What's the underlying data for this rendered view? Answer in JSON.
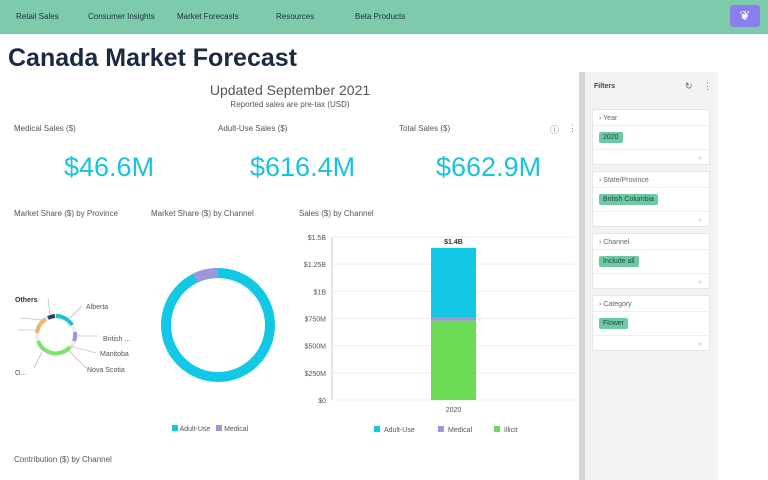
{
  "nav": {
    "items": [
      "Retail Sales",
      "Consumer Insights",
      "Market Forecasts",
      "Resources",
      "Beta Products"
    ],
    "logo_icon": "sprout-icon"
  },
  "page_title": "Canada Market Forecast",
  "header": {
    "updated": "Updated September 2021",
    "note": "Reported sales are pre-tax (USD)"
  },
  "kpis": [
    {
      "label": "Medical Sales ($)",
      "value": "$46.6M"
    },
    {
      "label": "Adult-Use Sales ($)",
      "value": "$616.4M"
    },
    {
      "label": "Total Sales ($)",
      "value": "$662.9M"
    }
  ],
  "province_chart": {
    "title": "Market Share ($) by Province",
    "labels": [
      "Others",
      "Alberta",
      "British ...",
      "Manitoba",
      "Nova Scotia",
      "O..."
    ]
  },
  "channel_chart": {
    "title": "Market Share ($) by Channel",
    "legend": [
      "Adult-Use",
      "Medical"
    ]
  },
  "sales_chart_title": "Sales ($) by Channel",
  "contribution_title": "Contribution ($) by Channel",
  "chart_data": {
    "type": "bar",
    "stacked": true,
    "categories": [
      "2020"
    ],
    "series": [
      {
        "name": "Illicit",
        "values": [
          730
        ],
        "color": "#6ddc55"
      },
      {
        "name": "Medical",
        "values": [
          30
        ],
        "color": "#9b97d8"
      },
      {
        "name": "Adult-Use",
        "values": [
          640
        ],
        "color": "#12c8e4"
      }
    ],
    "total_label": "$1.4B",
    "yticks": [
      "$0",
      "$250M",
      "$500M",
      "$750M",
      "$1B",
      "$1.25B",
      "$1.5B"
    ],
    "ylim": [
      0,
      1500
    ],
    "ylabel_unit": "millions USD",
    "legend": [
      "Adult-Use",
      "Medical",
      "Illicit"
    ]
  },
  "filters": {
    "title": "Filters",
    "cards": [
      {
        "label": "Year",
        "value": "2020"
      },
      {
        "label": "State/Province",
        "value": "British Columbia"
      },
      {
        "label": "Channel",
        "value": "Include all"
      },
      {
        "label": "Category",
        "value": "Flower"
      }
    ]
  }
}
